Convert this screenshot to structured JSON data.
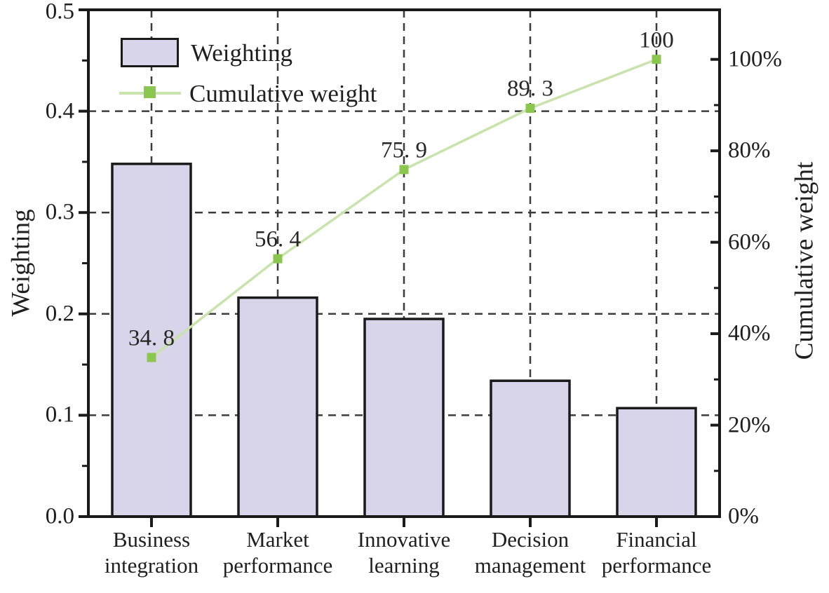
{
  "legend": {
    "items": [
      {
        "label": "Weighting",
        "swatch": "bar"
      },
      {
        "label": "Cumulative weight",
        "swatch": "line-marker"
      }
    ]
  },
  "chart_data": {
    "type": "pareto (bar + line)",
    "categories": [
      [
        "Business",
        "integration"
      ],
      [
        "Market",
        "performance"
      ],
      [
        "Innovative",
        "learning"
      ],
      [
        "Decision",
        "management"
      ],
      [
        "Financial",
        "performance"
      ]
    ],
    "series": [
      {
        "name": "Weighting",
        "type": "bar",
        "values": [
          0.348,
          0.216,
          0.195,
          0.134,
          0.107
        ]
      },
      {
        "name": "Cumulative weight",
        "type": "line",
        "values": [
          34.8,
          56.4,
          75.9,
          89.3,
          100
        ],
        "point_labels": [
          "34. 8",
          "56. 4",
          "75. 9",
          "89. 3",
          "100"
        ]
      }
    ],
    "left_axis": {
      "label": "Weighting",
      "min": 0,
      "max": 0.5,
      "ticks": [
        "0.0",
        "0.1",
        "0.2",
        "0.3",
        "0.4",
        "0.5"
      ],
      "minor_tick_step": 0.05
    },
    "right_axis": {
      "label": "Cumulative weight",
      "min_percent": 0,
      "ticks": [
        "0%",
        "20%",
        "40%",
        "60%",
        "80%",
        "100%"
      ],
      "minor_tick_step_percent": 10,
      "percent_at_plot_top": 110.8
    },
    "grid": "dashed crosshair gridlines at left-axis major ticks and category centers",
    "legend_position": "top-left inside plot",
    "colors": {
      "bar_fill": "#d8d4e9",
      "bar_border": "#1a1a1a",
      "line": "#c9e3ac",
      "marker": "#8bc64f",
      "grid": "#3c3c3c",
      "axis": "#1a1a1a",
      "text": "#1f1f1f"
    }
  }
}
